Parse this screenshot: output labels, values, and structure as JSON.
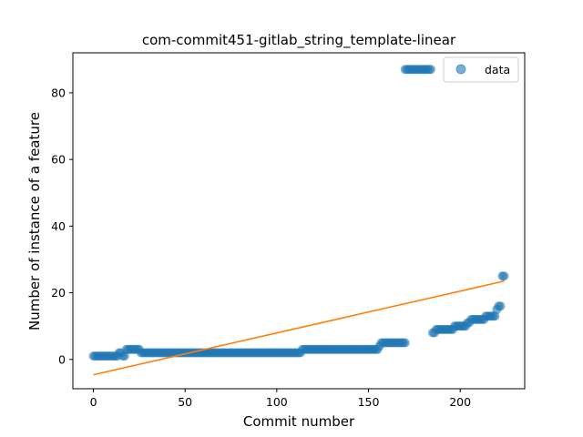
{
  "chart_data": {
    "type": "scatter",
    "title": "com-commit451-gitlab_string_template-linear",
    "xlabel": "Commit number",
    "ylabel": "Number of instance of a feature",
    "xlim": [
      -11.2,
      235.2
    ],
    "ylim": [
      -8.8,
      92
    ],
    "xticks": [
      0,
      50,
      100,
      150,
      200
    ],
    "yticks": [
      0,
      20,
      40,
      60,
      80
    ],
    "grid": false,
    "legend": {
      "placement": "top-right",
      "entries": [
        "data"
      ]
    },
    "colors": {
      "data": "#1f77b4",
      "fit": "#ff7f0e"
    },
    "series": [
      {
        "name": "data",
        "kind": "scatter",
        "segments": [
          {
            "x_start": 0,
            "x_end": 13,
            "y": 1
          },
          {
            "x_start": 14,
            "x_end": 15,
            "y": 2
          },
          {
            "x_start": 16,
            "x_end": 17,
            "y": 1
          },
          {
            "x_start": 18,
            "x_end": 25,
            "y": 3
          },
          {
            "x_start": 26,
            "x_end": 113,
            "y": 2
          },
          {
            "x_start": 114,
            "x_end": 155,
            "y": 3
          },
          {
            "x_start": 156,
            "x_end": 156,
            "y": 4
          },
          {
            "x_start": 157,
            "x_end": 170,
            "y": 5
          },
          {
            "x_start": 170,
            "x_end": 184,
            "y": 87
          },
          {
            "x_start": 185,
            "x_end": 186,
            "y": 8
          },
          {
            "x_start": 187,
            "x_end": 196,
            "y": 9
          },
          {
            "x_start": 197,
            "x_end": 203,
            "y": 10
          },
          {
            "x_start": 204,
            "x_end": 205,
            "y": 11
          },
          {
            "x_start": 206,
            "x_end": 213,
            "y": 12
          },
          {
            "x_start": 214,
            "x_end": 219,
            "y": 13
          },
          {
            "x_start": 220,
            "x_end": 220,
            "y": 15
          },
          {
            "x_start": 221,
            "x_end": 222,
            "y": 16
          },
          {
            "x_start": 223,
            "x_end": 224,
            "y": 25
          }
        ]
      },
      {
        "name": "",
        "kind": "line",
        "x": [
          0,
          224
        ],
        "y": [
          -4.6,
          23.5
        ]
      }
    ]
  }
}
